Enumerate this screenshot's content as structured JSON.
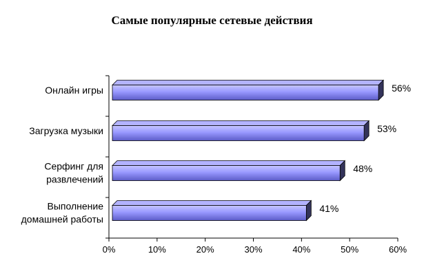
{
  "chart_data": {
    "type": "bar",
    "orientation": "horizontal",
    "title": "Самые популярные сетевые действия",
    "categories": [
      [
        "Онлайн игры"
      ],
      [
        "Загрузка музыки"
      ],
      [
        "Серфинг для",
        "развлечений"
      ],
      [
        "Выполнение",
        "домашней работы"
      ]
    ],
    "values": [
      56,
      53,
      48,
      41
    ],
    "value_labels": [
      "56%",
      "53%",
      "48%",
      "41%"
    ],
    "xlim": [
      0,
      60
    ],
    "x_ticks": [
      0,
      10,
      20,
      30,
      40,
      50,
      60
    ],
    "x_tick_labels": [
      "0%",
      "10%",
      "20%",
      "30%",
      "40%",
      "50%",
      "60%"
    ],
    "xlabel": "",
    "ylabel": "",
    "grid": false,
    "legend": "none",
    "colors": {
      "bar_front": "#9999ff",
      "bar_front_dark": "#5c5cc8",
      "bar_top": "#b3b3ff",
      "bar_side": "#33335a",
      "axis": "#000000"
    }
  }
}
